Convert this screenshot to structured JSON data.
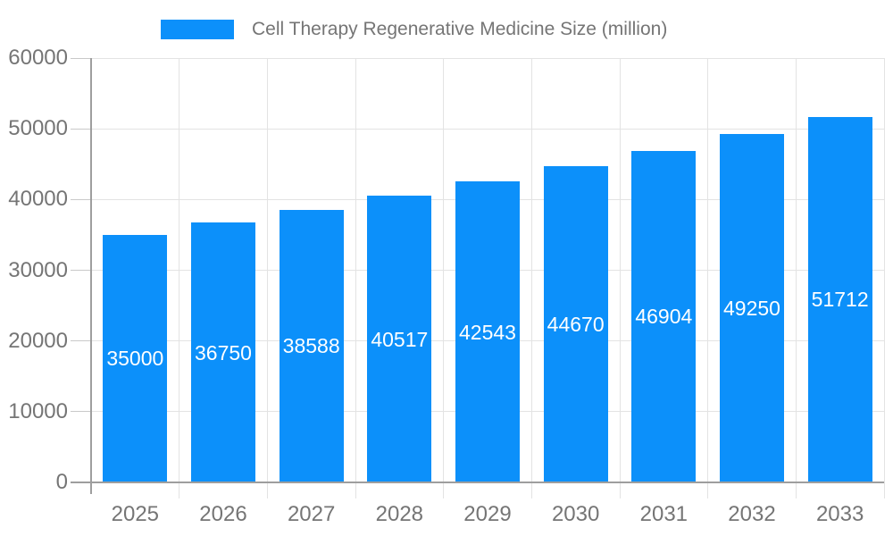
{
  "chart_data": {
    "type": "bar",
    "title": "Cell Therapy Regenerative Medicine Size (million)",
    "categories": [
      "2025",
      "2026",
      "2027",
      "2028",
      "2029",
      "2030",
      "2031",
      "2032",
      "2033"
    ],
    "series": [
      {
        "name": "Cell Therapy Regenerative Medicine Size (million)",
        "values": [
          35000,
          36750,
          38588,
          40517,
          42543,
          44670,
          46904,
          49250,
          51712
        ]
      }
    ],
    "value_labels": [
      35000,
      36750,
      38588,
      40517,
      42543,
      44670,
      46904,
      49250,
      51712
    ],
    "xlabel": "",
    "ylabel": "",
    "ylim": [
      0,
      60000
    ],
    "yticks": [
      0,
      10000,
      20000,
      30000,
      40000,
      50000,
      60000
    ],
    "grid": "horizontal-and-vertical",
    "legend_position": "top",
    "value_label_position": "inside-center"
  },
  "colors": {
    "bar": "#0C90FA",
    "axis": "#9e9e9e",
    "tick": "#c9c9c9",
    "gridline": "#e3e3e3",
    "label_text": "#757575",
    "value_label_text": "#ffffff",
    "background": "#ffffff"
  }
}
